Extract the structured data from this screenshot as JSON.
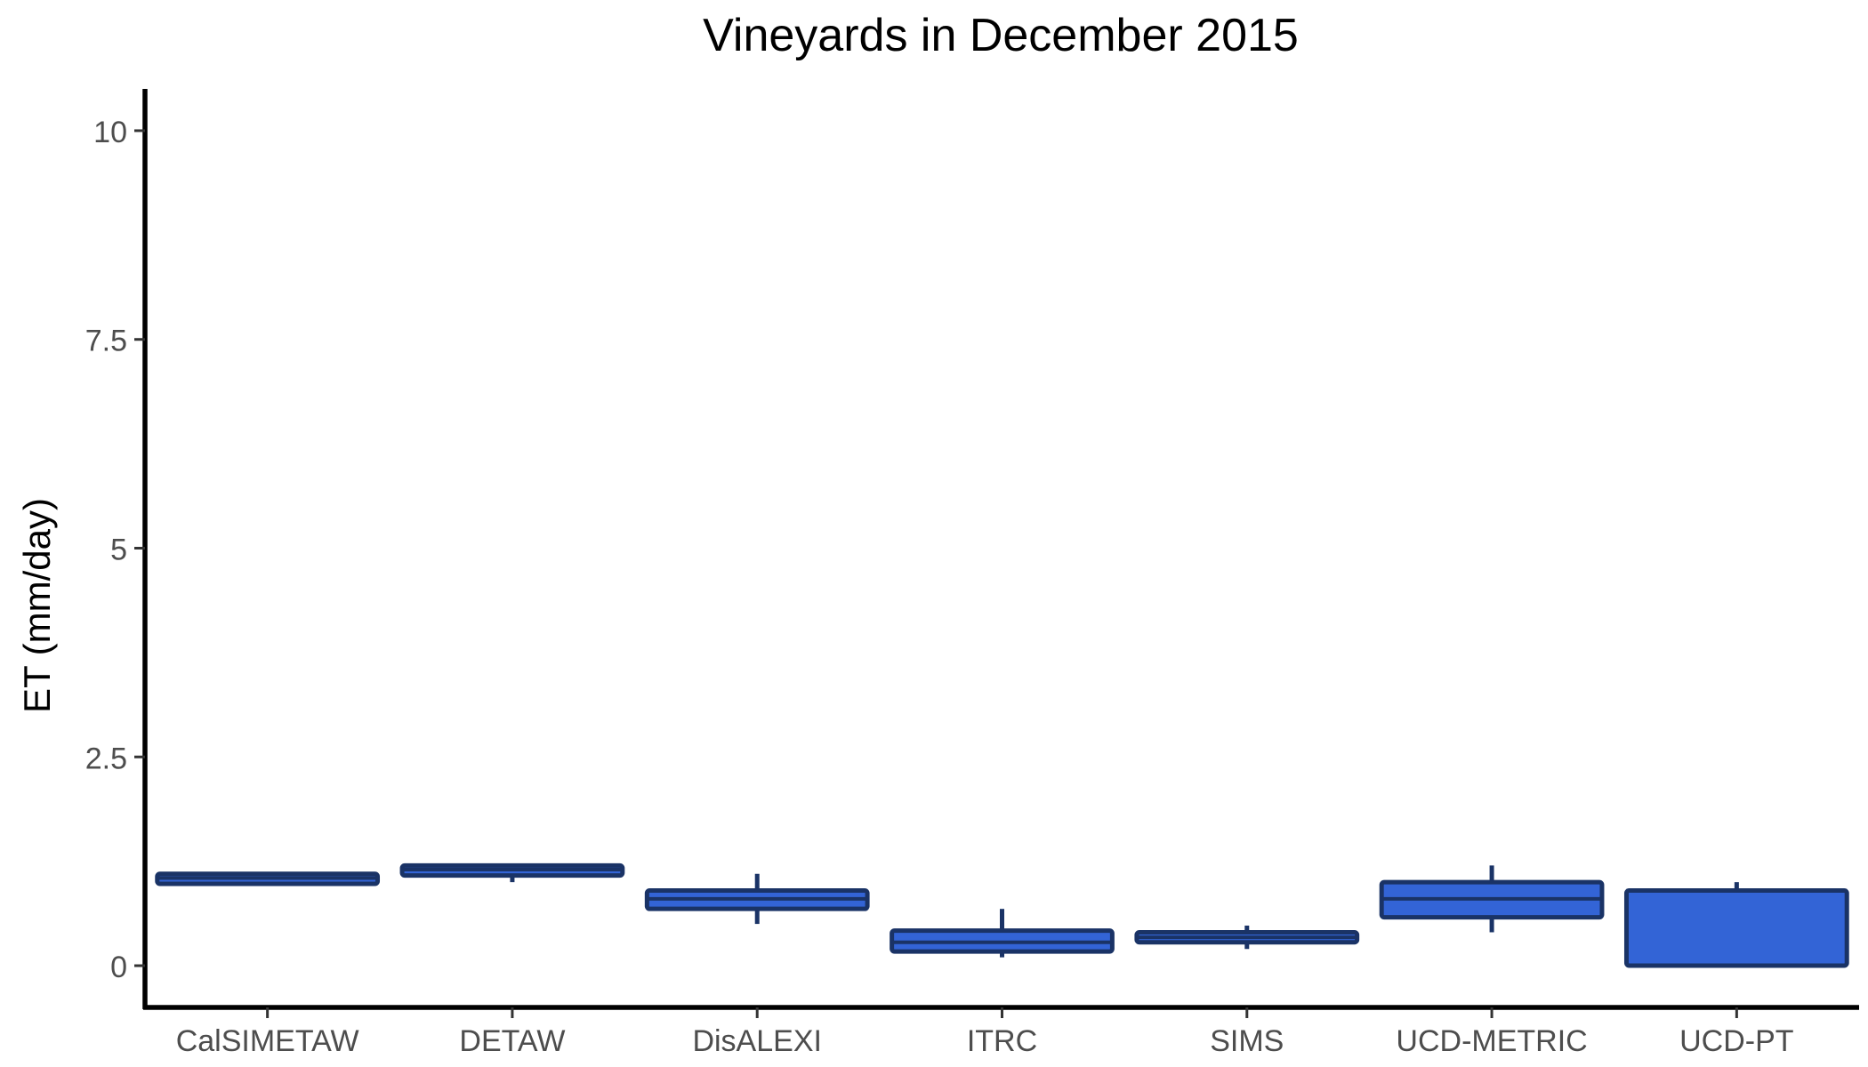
{
  "chart_data": {
    "type": "box",
    "title": "Vineyards in December 2015",
    "xlabel": "",
    "ylabel": "ET (mm/day)",
    "ylim": [
      -0.5,
      10.5
    ],
    "yticks": [
      0,
      2.5,
      5,
      7.5,
      10
    ],
    "ytick_labels": [
      "0",
      "2.5",
      "5",
      "7.5",
      "10"
    ],
    "grid": false,
    "legend": "none",
    "categories": [
      "CalSIMETAW",
      "DETAW",
      "DisALEXI",
      "ITRC",
      "SIMS",
      "UCD-METRIC",
      "UCD-PT"
    ],
    "boxes": [
      {
        "category": "CalSIMETAW",
        "min": 0.98,
        "q1": 0.98,
        "median": 1.05,
        "q3": 1.1,
        "max": 1.1
      },
      {
        "category": "DETAW",
        "min": 1.0,
        "q1": 1.08,
        "median": 1.15,
        "q3": 1.2,
        "max": 1.2
      },
      {
        "category": "DisALEXI",
        "min": 0.5,
        "q1": 0.68,
        "median": 0.8,
        "q3": 0.9,
        "max": 1.1
      },
      {
        "category": "ITRC",
        "min": 0.1,
        "q1": 0.17,
        "median": 0.28,
        "q3": 0.42,
        "max": 0.68
      },
      {
        "category": "SIMS",
        "min": 0.2,
        "q1": 0.28,
        "median": 0.34,
        "q3": 0.4,
        "max": 0.48
      },
      {
        "category": "UCD-METRIC",
        "min": 0.4,
        "q1": 0.58,
        "median": 0.8,
        "q3": 1.0,
        "max": 1.2
      },
      {
        "category": "UCD-PT",
        "min": 0.0,
        "q1": 0.0,
        "median": 0.9,
        "q3": 0.9,
        "max": 1.0
      }
    ],
    "colors": {
      "fill": "#3364d6",
      "stroke": "#1a3366",
      "axis": "#000000",
      "tick_label": "#4d4d4d"
    }
  }
}
